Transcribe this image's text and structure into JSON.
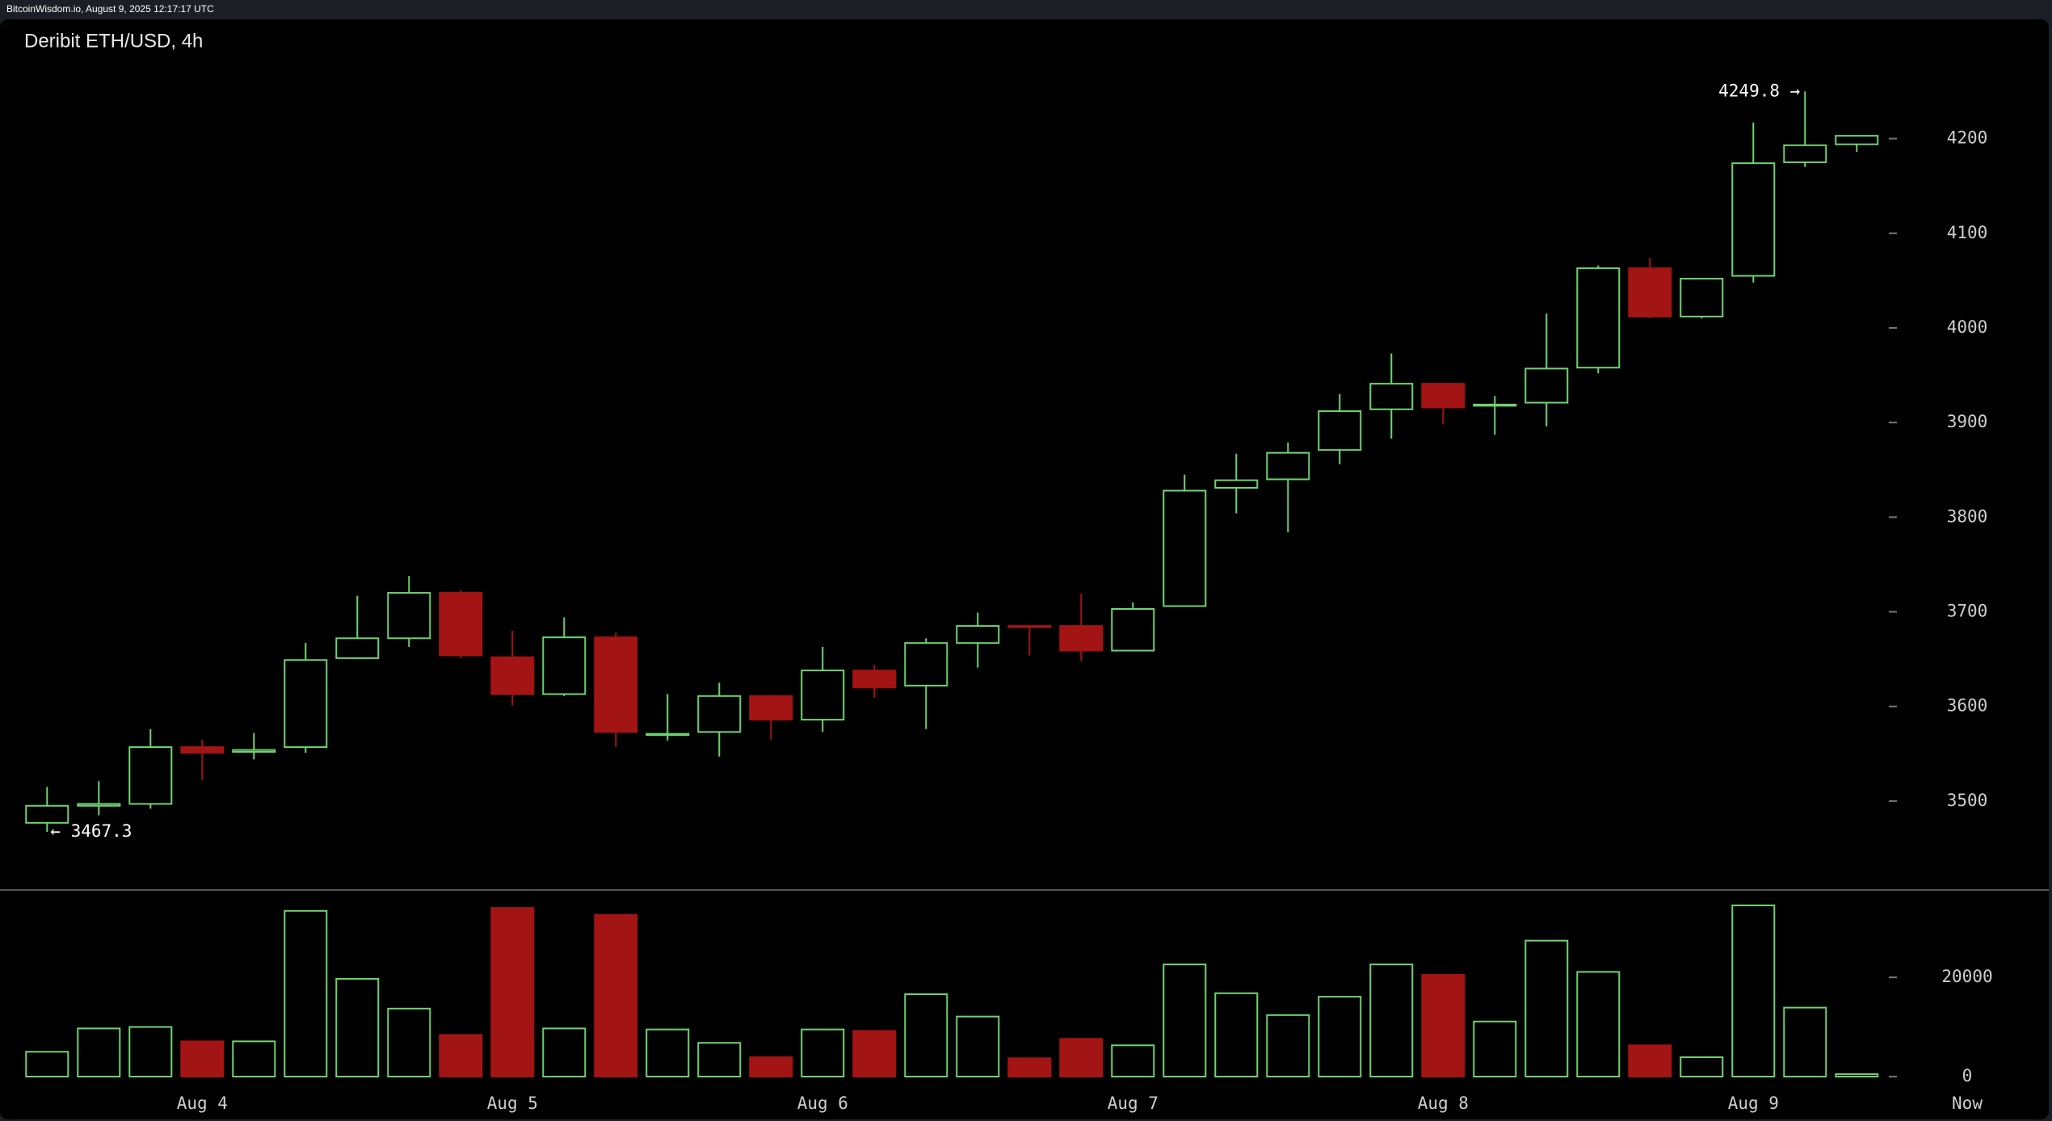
{
  "header": "BitcoinWisdom.io, August 9, 2025 12:17:17 UTC",
  "chart_data": [
    {
      "type": "candlestick",
      "title": "Deribit ETH/USD, 4h",
      "categories": [
        null,
        null,
        null,
        "Aug 4",
        null,
        null,
        null,
        null,
        null,
        "Aug 5",
        null,
        null,
        null,
        null,
        null,
        "Aug 6",
        null,
        null,
        null,
        null,
        null,
        "Aug 7",
        null,
        null,
        null,
        null,
        null,
        "Aug 8",
        null,
        null,
        null,
        null,
        null,
        "Aug 9",
        null,
        null
      ],
      "open": [
        3477,
        3495,
        3497,
        3557,
        3552,
        3557,
        3651,
        3672,
        3720,
        3652,
        3613,
        3673,
        3570,
        3573,
        3611,
        3586,
        3638,
        3622,
        3667,
        3685,
        3685,
        3659,
        3706,
        3831,
        3840,
        3871,
        3914,
        3941,
        3918,
        3921,
        3958,
        4063,
        4012,
        4055,
        4175,
        4194
      ],
      "high": [
        3515,
        3521,
        3576,
        3565,
        3572,
        3667,
        3717,
        3738,
        3723,
        3680,
        3694,
        3678,
        3613,
        3625,
        3612,
        3663,
        3644,
        3672,
        3699,
        3685,
        3719,
        3710,
        3845,
        3867,
        3879,
        3930,
        3973,
        3941,
        3928,
        4015,
        4066,
        4074,
        4052,
        4217,
        4249.8,
        4203
      ],
      "low": [
        3467.3,
        3485,
        3492,
        3522,
        3544,
        3551,
        3651,
        3663,
        3651,
        3601,
        3611,
        3557,
        3564,
        3547,
        3565,
        3573,
        3609,
        3576,
        3641,
        3654,
        3648,
        3659,
        3706,
        3804,
        3784,
        3856,
        3883,
        3898,
        3887,
        3896,
        3952,
        4010,
        4010,
        4048,
        4170,
        4186
      ],
      "close": [
        3495,
        3497,
        3557,
        3551,
        3554,
        3649,
        3672,
        3720,
        3654,
        3613,
        3673,
        3573,
        3571,
        3611,
        3586,
        3638,
        3620,
        3667,
        3685,
        3684,
        3659,
        3703,
        3828,
        3839,
        3868,
        3912,
        3941,
        3916,
        3919,
        3957,
        4063,
        4012,
        4052,
        4174,
        4193,
        4203
      ],
      "up_color": "#6fd46f",
      "down_color": "#a31414",
      "ylim": [
        3406,
        4326
      ],
      "yticks": [
        3500,
        3600,
        3700,
        3800,
        3900,
        4000,
        4100,
        4200
      ],
      "max_label": "4249.8 →",
      "min_label": "← 3467.3",
      "x_end_label": "Now"
    },
    {
      "type": "bar",
      "values": [
        5000,
        9700,
        10000,
        7100,
        7100,
        33400,
        19700,
        13700,
        8400,
        34000,
        9700,
        32600,
        9500,
        6800,
        3900,
        9500,
        9200,
        16600,
        12100,
        3700,
        7600,
        6300,
        22600,
        16800,
        12400,
        16100,
        22600,
        20500,
        11100,
        27400,
        21100,
        6300,
        3900,
        34500,
        13900,
        500
      ],
      "ylim": [
        0,
        37600
      ],
      "yticks": [
        0,
        20000
      ]
    }
  ]
}
